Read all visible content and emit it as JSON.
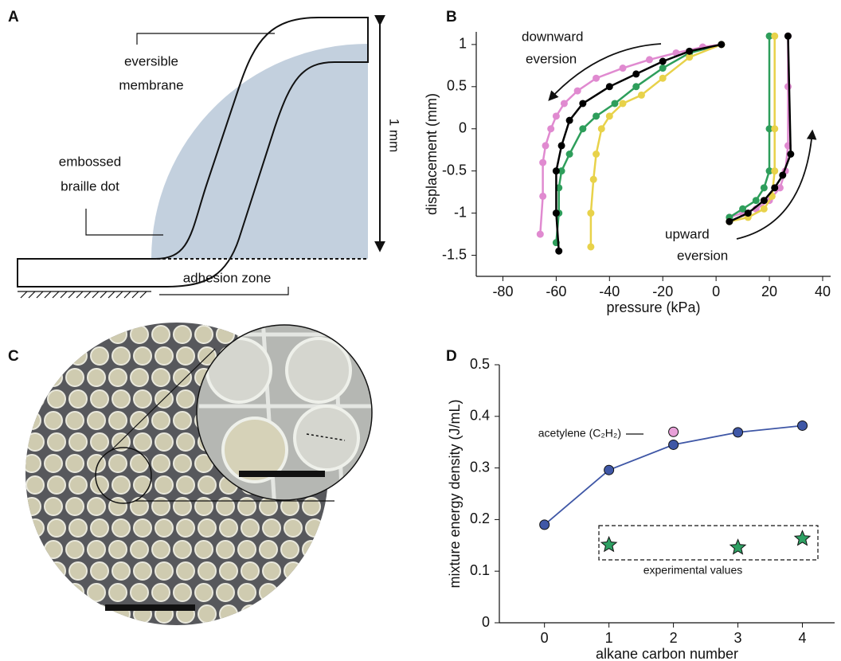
{
  "panel_labels": [
    "A",
    "B",
    "C",
    "D"
  ],
  "diagram": {
    "membrane_label": [
      "eversible",
      "membrane"
    ],
    "dot_label": [
      "embossed",
      "braille dot"
    ],
    "height_label": "1 mm",
    "adhesion_label": "adhesion zone"
  },
  "chart_data": [
    {
      "type": "line",
      "xlabel": "pressure (kPa)",
      "ylabel": "displacement (mm)",
      "xlim": [
        -90,
        43
      ],
      "xticks": [
        -80,
        -60,
        -40,
        -20,
        0,
        20,
        40
      ],
      "ylim": [
        -1.75,
        1.15
      ],
      "yticks": [
        -1.5,
        -1,
        -0.5,
        0,
        0.5,
        1
      ],
      "annotations": [
        [
          "downward",
          "eversion"
        ],
        [
          "upward",
          "eversion"
        ]
      ],
      "series": [
        {
          "color": "#e08ad0",
          "x": [
            2,
            -5,
            -15,
            -25,
            -35,
            -45,
            -52,
            -57,
            -60,
            -62,
            -64,
            -65,
            -65,
            -66,
            null,
            5,
            10,
            15,
            20,
            24,
            26,
            27,
            27,
            27
          ],
          "values": [
            1,
            0.97,
            0.9,
            0.82,
            0.72,
            0.6,
            0.45,
            0.3,
            0.15,
            0,
            -0.2,
            -0.4,
            -0.8,
            -1.25,
            null,
            -1.05,
            -1,
            -0.95,
            -0.85,
            -0.7,
            -0.5,
            -0.2,
            0.5,
            1.1
          ]
        },
        {
          "color": "#2e9e5b",
          "x": [
            2,
            -10,
            -20,
            -30,
            -38,
            -45,
            -50,
            -55,
            -58,
            -59,
            -59,
            -60,
            null,
            5,
            10,
            15,
            18,
            20,
            20,
            20
          ],
          "values": [
            1,
            0.9,
            0.72,
            0.5,
            0.3,
            0.15,
            0,
            -0.3,
            -0.5,
            -0.7,
            -1,
            -1.35,
            null,
            -1.05,
            -0.95,
            -0.85,
            -0.7,
            -0.5,
            0,
            1.1
          ]
        },
        {
          "color": "#e8d24a",
          "x": [
            2,
            -10,
            -20,
            -28,
            -35,
            -40,
            -43,
            -45,
            -46,
            -47,
            -47,
            null,
            5,
            12,
            18,
            21,
            22,
            22,
            22
          ],
          "values": [
            1,
            0.85,
            0.6,
            0.4,
            0.3,
            0.15,
            0,
            -0.3,
            -0.6,
            -1,
            -1.4,
            null,
            -1.1,
            -1.05,
            -0.95,
            -0.8,
            -0.5,
            0,
            1.1
          ]
        },
        {
          "color": "#000000",
          "x": [
            2,
            -10,
            -20,
            -30,
            -40,
            -50,
            -55,
            -58,
            -60,
            -60,
            -59,
            null,
            5,
            12,
            18,
            22,
            25,
            28,
            27
          ],
          "values": [
            1,
            0.92,
            0.8,
            0.65,
            0.5,
            0.3,
            0.1,
            -0.2,
            -0.5,
            -1,
            -1.45,
            null,
            -1.1,
            -1,
            -0.85,
            -0.7,
            -0.55,
            -0.3,
            1.1
          ]
        }
      ]
    },
    {
      "type": "line",
      "xlabel": "alkane carbon number",
      "ylabel": "mixture energy density (J/mL)",
      "xlim": [
        -0.7,
        4.5
      ],
      "xticks": [
        0,
        1,
        2,
        3,
        4
      ],
      "ylim": [
        0,
        0.5
      ],
      "yticks": [
        0,
        0.1,
        0.2,
        0.3,
        0.4,
        0.5
      ],
      "series": [
        {
          "color": "#3f57a6",
          "marker": "circle",
          "line": true,
          "x": [
            0,
            1,
            2,
            3,
            4
          ],
          "values": [
            0.19,
            0.296,
            0.345,
            0.369,
            0.382
          ]
        },
        {
          "name": "acetylene (C₂H₂)",
          "color": "#e8a0d8",
          "marker": "circle",
          "line": false,
          "x": [
            2
          ],
          "values": [
            0.37
          ]
        },
        {
          "name": "experimental values",
          "color": "#2ea063",
          "marker": "star",
          "line": false,
          "x": [
            1,
            3,
            4
          ],
          "values": [
            0.151,
            0.146,
            0.163
          ]
        }
      ]
    }
  ]
}
